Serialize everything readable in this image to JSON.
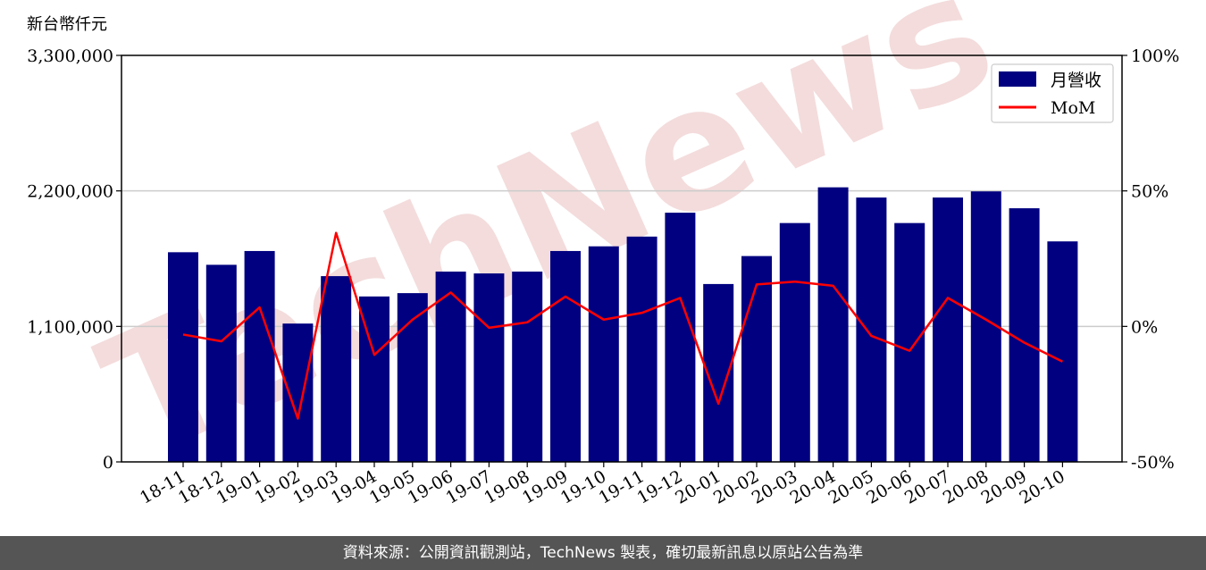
{
  "chart_data": {
    "type": "bar+line",
    "categories": [
      "18-11",
      "18-12",
      "19-01",
      "19-02",
      "19-03",
      "19-04",
      "19-05",
      "19-06",
      "19-07",
      "19-08",
      "19-09",
      "19-10",
      "19-11",
      "19-12",
      "20-01",
      "20-02",
      "20-03",
      "20-04",
      "20-05",
      "20-06",
      "20-07",
      "20-08",
      "20-09",
      "20-10"
    ],
    "series": [
      {
        "name": "月營收",
        "type": "bar",
        "axis": "left",
        "values": [
          1702000,
          1600000,
          1712000,
          1123000,
          1508000,
          1343000,
          1370000,
          1545000,
          1530000,
          1545000,
          1712000,
          1750000,
          1829000,
          2023000,
          1444000,
          1671000,
          1939000,
          2229000,
          2146000,
          1939000,
          2146000,
          2196000,
          2059000,
          1790000
        ]
      },
      {
        "name": "MoM",
        "type": "line",
        "axis": "right",
        "values": [
          -3.0,
          -5.5,
          7.0,
          -34.0,
          34.5,
          -10.5,
          2.5,
          12.5,
          -0.5,
          1.5,
          11.0,
          2.5,
          5.0,
          10.5,
          -28.5,
          15.5,
          16.5,
          15.0,
          -3.5,
          -9.0,
          10.5,
          2.5,
          -6.0,
          -13.0
        ]
      }
    ],
    "ylabel": "新台幣仟元",
    "ylim": [
      0,
      3300000
    ],
    "yticks": [
      "0",
      "1,100,000",
      "2,200,000",
      "3,300,000"
    ],
    "y2lim": [
      -50,
      100
    ],
    "y2ticks": [
      "-50%",
      "0%",
      "50%",
      "100%"
    ],
    "grid": "horizontal",
    "legend": "top-right"
  },
  "colors": {
    "bar": "#000080",
    "line": "#ff0000",
    "grid": "#cccccc",
    "watermark": "#f2d4d4",
    "footer_bg": "#555555"
  },
  "watermark": "TechNews",
  "footer": {
    "source_text": "資料來源：公開資訊觀測站，TechNews 製表，確切最新訊息以原站公告為準"
  }
}
